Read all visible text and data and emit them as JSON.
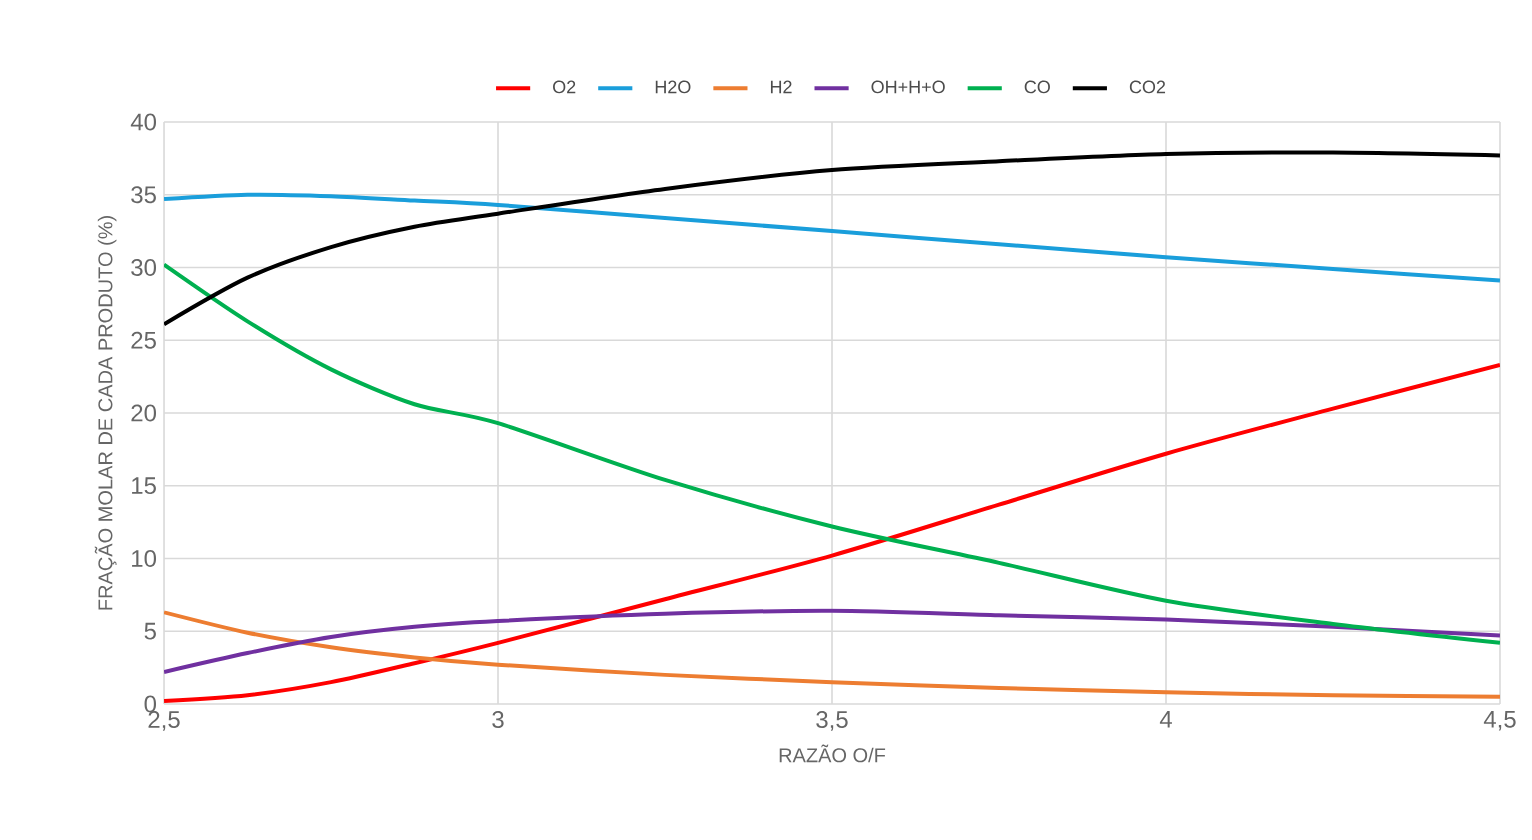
{
  "chart_data": {
    "type": "line",
    "xlabel": "RAZÃO O/F",
    "ylabel": "FRAÇÃO MOLAR DE CADA PRODUTO (%)",
    "x": [
      2.5,
      2.625,
      2.75,
      2.875,
      3,
      3.25,
      3.5,
      3.75,
      4,
      4.25,
      4.5
    ],
    "series": [
      {
        "name": "O2",
        "color": "#ff0000",
        "values": [
          0.2,
          0.6,
          1.5,
          2.8,
          4.2,
          7.2,
          10.2,
          13.7,
          17.2,
          20.3,
          23.3
        ]
      },
      {
        "name": "H2O",
        "color": "#1a9edb",
        "values": [
          34.7,
          35.0,
          34.9,
          34.6,
          34.3,
          33.4,
          32.5,
          31.6,
          30.7,
          29.9,
          29.1
        ]
      },
      {
        "name": "H2",
        "color": "#ed7d31",
        "values": [
          6.3,
          4.9,
          3.9,
          3.2,
          2.7,
          2.0,
          1.5,
          1.1,
          0.8,
          0.6,
          0.5
        ]
      },
      {
        "name": "OH+H+O",
        "color": "#7030a0",
        "values": [
          2.2,
          3.5,
          4.6,
          5.3,
          5.7,
          6.2,
          6.4,
          6.1,
          5.8,
          5.3,
          4.7
        ]
      },
      {
        "name": "CO",
        "color": "#00b050",
        "values": [
          30.2,
          26.3,
          23.0,
          20.6,
          19.3,
          15.4,
          12.2,
          9.7,
          7.1,
          5.5,
          4.2
        ]
      },
      {
        "name": "CO2",
        "color": "#000000",
        "values": [
          26.1,
          29.3,
          31.4,
          32.8,
          33.7,
          35.4,
          36.7,
          37.3,
          37.8,
          37.9,
          37.7
        ]
      }
    ],
    "xlim": [
      2.5,
      4.5
    ],
    "xticks": [
      {
        "value": 2.5,
        "label": "2,5"
      },
      3,
      {
        "value": 3.5,
        "label": "3,5"
      },
      4,
      {
        "value": 4.5,
        "label": "4,5"
      }
    ],
    "ylim": [
      0,
      40
    ],
    "yticks": [
      0,
      5,
      10,
      15,
      20,
      25,
      30,
      35,
      40
    ],
    "grid": true,
    "legend": "top",
    "line_style": "solid"
  }
}
